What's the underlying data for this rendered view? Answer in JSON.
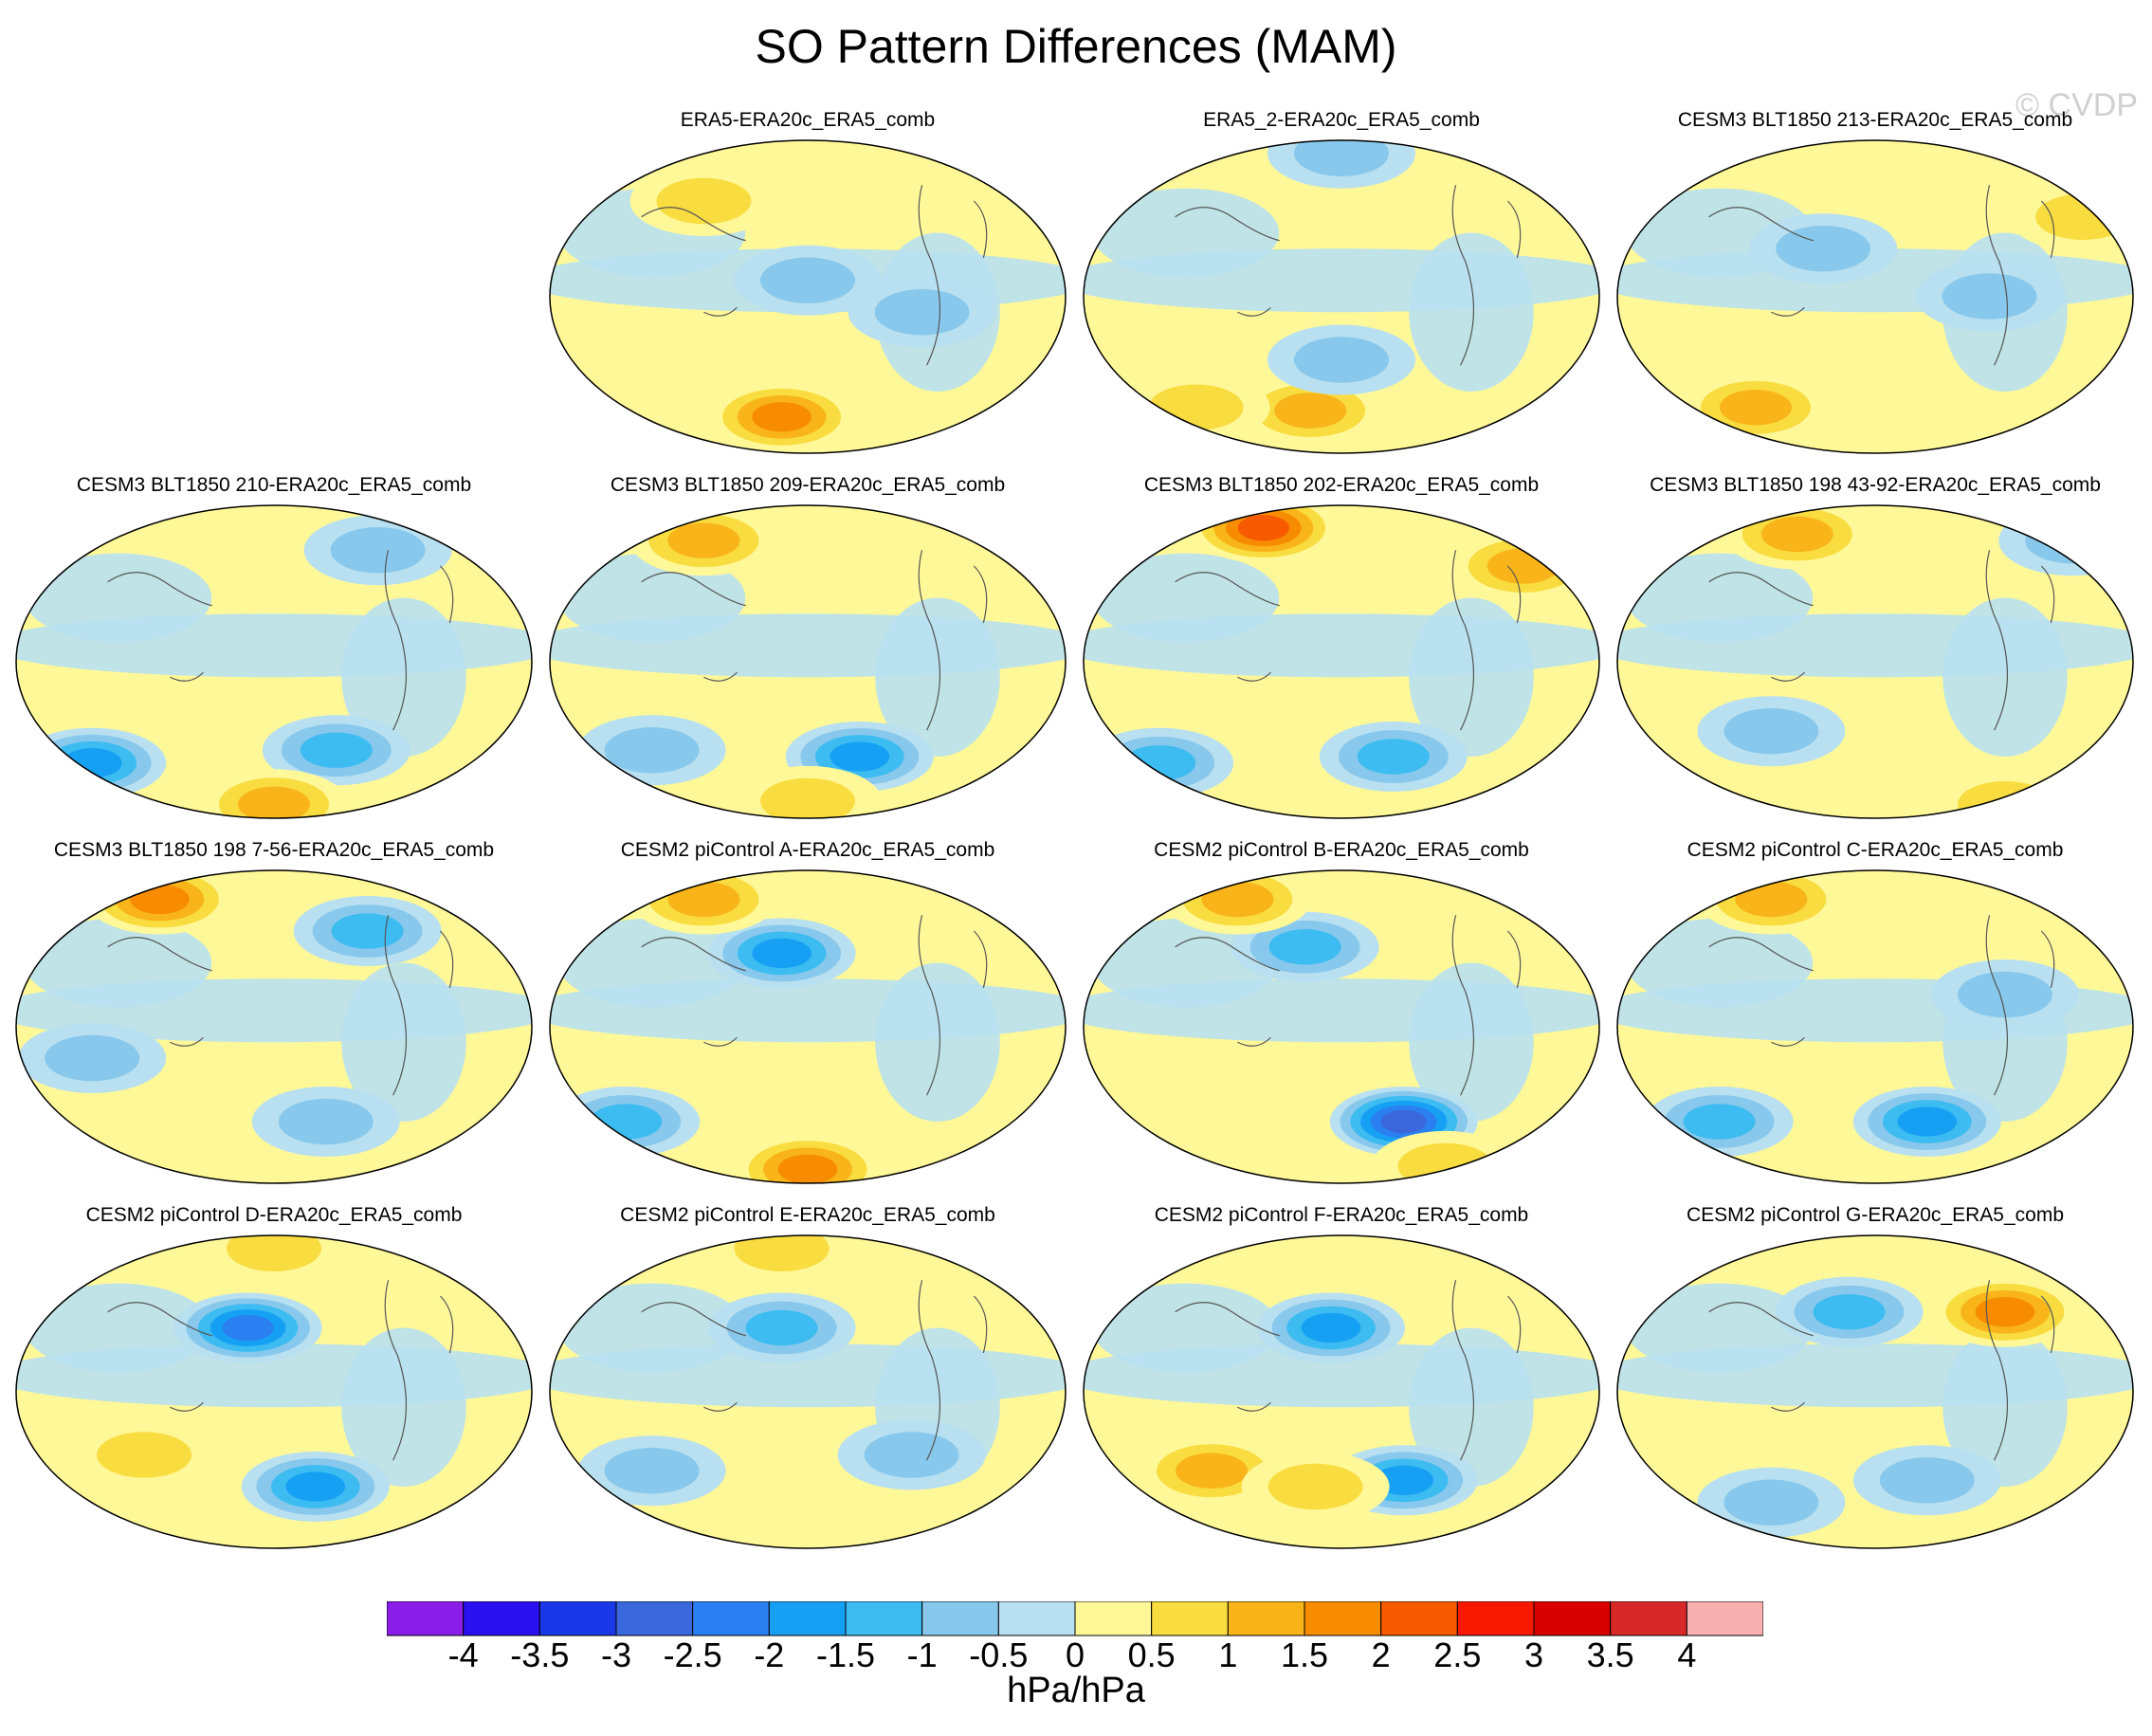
{
  "title": "SO Pattern Differences (MAM)",
  "watermark": "© CVDP",
  "colorbar": {
    "unit": "hPa/hPa",
    "ticks": [
      "-4",
      "-3.5",
      "-3",
      "-2.5",
      "-2",
      "-1.5",
      "-1",
      "-0.5",
      "0",
      "0.5",
      "1",
      "1.5",
      "2",
      "2.5",
      "3",
      "3.5",
      "4"
    ],
    "colors": [
      "#8a1ee8",
      "#2a10ee",
      "#1a38e8",
      "#3a68dc",
      "#2a80f0",
      "#16a0f4",
      "#3cbcf0",
      "#88c8ec",
      "#b8e0f0",
      "#fff898",
      "#f8dc40",
      "#f8b418",
      "#f88c00",
      "#f85a00",
      "#f81800",
      "#d80000",
      "#d82828",
      "#f8b0b0"
    ]
  },
  "chart_data": {
    "type": "heatmap",
    "projection": "Robinson (Pacific-centered)",
    "value_range": [
      -4,
      4
    ],
    "panels": [
      {
        "title": "ERA5-ERA20c_ERA5_comb",
        "features": [
          [
            0.45,
            0.88,
            1.8,
            "m"
          ],
          [
            0.3,
            0.2,
            0.6,
            "m"
          ],
          [
            0.72,
            0.55,
            -0.7,
            "m"
          ],
          [
            0.5,
            0.45,
            -0.6,
            "m"
          ]
        ]
      },
      {
        "title": "ERA5_2-ERA20c_ERA5_comb",
        "features": [
          [
            0.5,
            0.05,
            -1.0,
            "m"
          ],
          [
            0.44,
            0.86,
            1.4,
            "m"
          ],
          [
            0.22,
            0.85,
            1.0,
            "m"
          ],
          [
            0.5,
            0.7,
            -0.6,
            "m"
          ]
        ]
      },
      {
        "title": "CESM3 BLT1850 213-ERA20c_ERA5_comb",
        "features": [
          [
            0.27,
            0.85,
            1.2,
            "m"
          ],
          [
            0.72,
            0.5,
            -0.6,
            "m"
          ],
          [
            0.4,
            0.35,
            -0.6,
            "m"
          ],
          [
            0.9,
            0.25,
            0.8,
            "m"
          ]
        ]
      },
      {
        "title": "CESM3 BLT1850 210-ERA20c_ERA5_comb",
        "features": [
          [
            0.15,
            0.82,
            -1.6,
            "m"
          ],
          [
            0.62,
            0.78,
            -1.4,
            "m"
          ],
          [
            0.5,
            0.95,
            1.2,
            "m"
          ],
          [
            0.7,
            0.15,
            -0.8,
            "m"
          ]
        ]
      },
      {
        "title": "CESM3 BLT1850 209-ERA20c_ERA5_comb",
        "features": [
          [
            0.6,
            0.8,
            -2.0,
            "m"
          ],
          [
            0.2,
            0.78,
            -1.0,
            "m"
          ],
          [
            0.5,
            0.94,
            0.9,
            "m"
          ],
          [
            0.3,
            0.12,
            1.2,
            "m"
          ]
        ]
      },
      {
        "title": "CESM3 BLT1850 202-ERA20c_ERA5_comb",
        "features": [
          [
            0.35,
            0.08,
            2.1,
            "m"
          ],
          [
            0.6,
            0.8,
            -1.5,
            "m"
          ],
          [
            0.15,
            0.82,
            -1.4,
            "m"
          ],
          [
            0.85,
            0.2,
            1.1,
            "m"
          ]
        ]
      },
      {
        "title": "CESM3 BLT1850 198 43-92-ERA20c_ERA5_comb",
        "features": [
          [
            0.35,
            0.1,
            1.2,
            "m"
          ],
          [
            0.3,
            0.72,
            -0.7,
            "m"
          ],
          [
            0.75,
            0.95,
            1.0,
            "m"
          ],
          [
            0.88,
            0.12,
            -0.8,
            "m"
          ]
        ]
      },
      {
        "title": "CESM3 BLT1850 198 7-56-ERA20c_ERA5_comb",
        "features": [
          [
            0.28,
            0.1,
            1.8,
            "m"
          ],
          [
            0.68,
            0.2,
            -1.2,
            "m"
          ],
          [
            0.15,
            0.6,
            -0.8,
            "m"
          ],
          [
            0.6,
            0.8,
            -0.9,
            "m"
          ]
        ]
      },
      {
        "title": "CESM2 piControl A-ERA20c_ERA5_comb",
        "features": [
          [
            0.45,
            0.27,
            -1.6,
            "m"
          ],
          [
            0.5,
            0.95,
            1.6,
            "m"
          ],
          [
            0.15,
            0.8,
            -1.2,
            "m"
          ],
          [
            0.3,
            0.1,
            1.2,
            "m"
          ]
        ]
      },
      {
        "title": "CESM2 piControl B-ERA20c_ERA5_comb",
        "features": [
          [
            0.62,
            0.8,
            -2.8,
            "m"
          ],
          [
            0.43,
            0.25,
            -1.4,
            "m"
          ],
          [
            0.3,
            0.1,
            1.2,
            "m"
          ],
          [
            0.7,
            0.94,
            1.0,
            "m"
          ]
        ]
      },
      {
        "title": "CESM2 piControl C-ERA20c_ERA5_comb",
        "features": [
          [
            0.6,
            0.8,
            -2.0,
            "m"
          ],
          [
            0.3,
            0.1,
            1.5,
            "m"
          ],
          [
            0.2,
            0.8,
            -1.2,
            "m"
          ],
          [
            0.75,
            0.4,
            -0.8,
            "m"
          ]
        ]
      },
      {
        "title": "CESM2 piControl D-ERA20c_ERA5_comb",
        "features": [
          [
            0.45,
            0.3,
            -2.5,
            "m"
          ],
          [
            0.58,
            0.8,
            -1.8,
            "m"
          ],
          [
            0.5,
            0.05,
            1.0,
            "m"
          ],
          [
            0.25,
            0.7,
            0.9,
            "m"
          ]
        ]
      },
      {
        "title": "CESM2 piControl E-ERA20c_ERA5_comb",
        "features": [
          [
            0.45,
            0.3,
            -1.2,
            "m"
          ],
          [
            0.45,
            0.05,
            1.0,
            "m"
          ],
          [
            0.2,
            0.75,
            -0.8,
            "m"
          ],
          [
            0.7,
            0.7,
            -0.7,
            "m"
          ]
        ]
      },
      {
        "title": "CESM2 piControl F-ERA20c_ERA5_comb",
        "features": [
          [
            0.48,
            0.3,
            -1.8,
            "m"
          ],
          [
            0.62,
            0.78,
            -1.6,
            "m"
          ],
          [
            0.25,
            0.75,
            1.2,
            "m"
          ],
          [
            0.45,
            0.8,
            0.9,
            "m"
          ]
        ]
      },
      {
        "title": "CESM2 piControl G-ERA20c_ERA5_comb",
        "features": [
          [
            0.45,
            0.25,
            -1.5,
            "m"
          ],
          [
            0.75,
            0.25,
            1.6,
            "m"
          ],
          [
            0.6,
            0.78,
            -1.0,
            "m"
          ],
          [
            0.3,
            0.85,
            -0.8,
            "m"
          ]
        ]
      }
    ]
  }
}
